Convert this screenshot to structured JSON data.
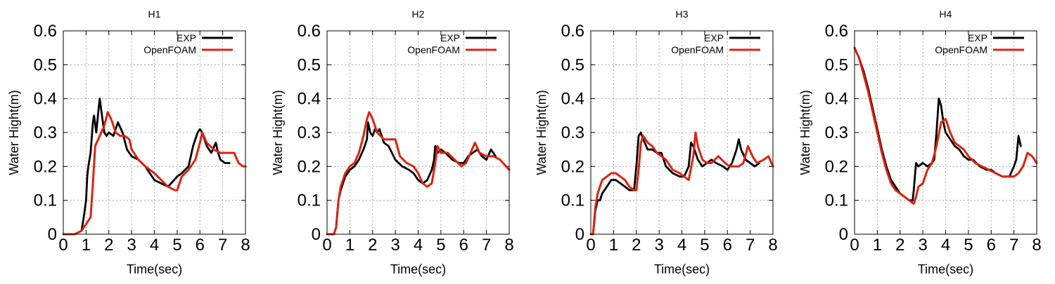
{
  "chart_data": [
    {
      "type": "line",
      "title": "H1",
      "xlabel": "Time(sec)",
      "ylabel": "Water Hight(m)",
      "xlim": [
        0,
        8
      ],
      "ylim": [
        0,
        0.6
      ],
      "xticks": [
        0,
        1,
        2,
        3,
        4,
        5,
        6,
        7,
        8
      ],
      "yticks": [
        0,
        0.1,
        0.2,
        0.3,
        0.4,
        0.5,
        0.6
      ],
      "grid": true,
      "legend": "top-right",
      "series": [
        {
          "name": "EXP",
          "color": "#000000",
          "x": [
            0,
            0.5,
            0.8,
            0.9,
            1.0,
            1.05,
            1.1,
            1.2,
            1.3,
            1.35,
            1.45,
            1.55,
            1.6,
            1.7,
            1.8,
            1.9,
            2.0,
            2.2,
            2.4,
            2.6,
            2.8,
            3.0,
            3.3,
            3.6,
            3.8,
            4.0,
            4.3,
            4.6,
            5.0,
            5.2,
            5.5,
            5.7,
            5.9,
            6.0,
            6.1,
            6.3,
            6.5,
            6.7,
            6.8,
            6.9,
            7.1,
            7.3
          ],
          "values": [
            0,
            0,
            0.01,
            0.05,
            0.1,
            0.17,
            0.2,
            0.24,
            0.33,
            0.35,
            0.3,
            0.37,
            0.4,
            0.35,
            0.3,
            0.29,
            0.3,
            0.29,
            0.33,
            0.3,
            0.25,
            0.23,
            0.22,
            0.2,
            0.18,
            0.16,
            0.15,
            0.14,
            0.17,
            0.18,
            0.2,
            0.26,
            0.3,
            0.31,
            0.3,
            0.26,
            0.24,
            0.27,
            0.24,
            0.22,
            0.21,
            0.21
          ]
        },
        {
          "name": "OpenFOAM",
          "color": "#dc2310",
          "x": [
            0,
            0.5,
            0.8,
            1.0,
            1.1,
            1.2,
            1.3,
            1.4,
            1.6,
            1.8,
            1.95,
            2.1,
            2.3,
            2.5,
            2.7,
            2.9,
            3.0,
            3.3,
            3.6,
            4.0,
            4.3,
            4.6,
            4.9,
            5.0,
            5.2,
            5.5,
            5.8,
            6.0,
            6.1,
            6.3,
            6.6,
            6.9,
            7.2,
            7.5,
            7.7,
            7.9,
            8.0
          ],
          "values": [
            0,
            0,
            0.01,
            0.03,
            0.04,
            0.05,
            0.15,
            0.26,
            0.29,
            0.32,
            0.36,
            0.34,
            0.3,
            0.29,
            0.29,
            0.28,
            0.25,
            0.22,
            0.2,
            0.18,
            0.16,
            0.14,
            0.13,
            0.13,
            0.17,
            0.19,
            0.22,
            0.27,
            0.3,
            0.27,
            0.25,
            0.24,
            0.24,
            0.24,
            0.21,
            0.2,
            0.2
          ]
        }
      ]
    },
    {
      "type": "line",
      "title": "H2",
      "xlabel": "Time(sec)",
      "ylabel": "Water Hight(m)",
      "xlim": [
        0,
        8
      ],
      "ylim": [
        0,
        0.6
      ],
      "xticks": [
        0,
        1,
        2,
        3,
        4,
        5,
        6,
        7,
        8
      ],
      "yticks": [
        0,
        0.1,
        0.2,
        0.3,
        0.4,
        0.5,
        0.6
      ],
      "grid": true,
      "legend": "top-right",
      "series": [
        {
          "name": "EXP",
          "color": "#000000",
          "x": [
            0,
            0.3,
            0.4,
            0.5,
            0.6,
            0.8,
            1.0,
            1.2,
            1.4,
            1.6,
            1.75,
            1.8,
            1.9,
            2.0,
            2.1,
            2.2,
            2.3,
            2.5,
            2.7,
            3.0,
            3.3,
            3.6,
            3.8,
            4.0,
            4.2,
            4.4,
            4.6,
            4.7,
            4.75,
            4.85,
            5.0,
            5.2,
            5.5,
            5.8,
            6.0,
            6.2,
            6.4,
            6.6,
            6.8,
            7.0,
            7.2,
            7.4
          ],
          "values": [
            0,
            0,
            0.02,
            0.1,
            0.13,
            0.17,
            0.19,
            0.2,
            0.22,
            0.25,
            0.28,
            0.33,
            0.3,
            0.29,
            0.31,
            0.3,
            0.31,
            0.27,
            0.26,
            0.22,
            0.2,
            0.19,
            0.18,
            0.16,
            0.15,
            0.16,
            0.19,
            0.22,
            0.26,
            0.24,
            0.25,
            0.24,
            0.22,
            0.21,
            0.21,
            0.23,
            0.24,
            0.25,
            0.23,
            0.22,
            0.25,
            0.23
          ]
        },
        {
          "name": "OpenFOAM",
          "color": "#dc2310",
          "x": [
            0,
            0.3,
            0.4,
            0.5,
            0.6,
            0.8,
            1.0,
            1.2,
            1.4,
            1.6,
            1.75,
            1.85,
            2.0,
            2.2,
            2.5,
            2.8,
            3.0,
            3.2,
            3.5,
            3.8,
            4.0,
            4.2,
            4.4,
            4.6,
            4.75,
            4.85,
            5.0,
            5.3,
            5.6,
            5.9,
            6.1,
            6.3,
            6.5,
            6.7,
            7.0,
            7.3,
            7.6,
            8.0
          ],
          "values": [
            0,
            0,
            0.02,
            0.1,
            0.14,
            0.18,
            0.2,
            0.21,
            0.24,
            0.29,
            0.34,
            0.36,
            0.34,
            0.3,
            0.28,
            0.28,
            0.28,
            0.23,
            0.21,
            0.2,
            0.18,
            0.15,
            0.14,
            0.15,
            0.21,
            0.26,
            0.24,
            0.24,
            0.22,
            0.2,
            0.21,
            0.24,
            0.27,
            0.24,
            0.23,
            0.23,
            0.22,
            0.19
          ]
        }
      ]
    },
    {
      "type": "line",
      "title": "H3",
      "xlabel": "Time(sec)",
      "ylabel": "Water Hight(m)",
      "xlim": [
        0,
        8
      ],
      "ylim": [
        0,
        0.6
      ],
      "xticks": [
        0,
        1,
        2,
        3,
        4,
        5,
        6,
        7,
        8
      ],
      "yticks": [
        0,
        0.1,
        0.2,
        0.3,
        0.4,
        0.5,
        0.6
      ],
      "grid": true,
      "legend": "top-right",
      "series": [
        {
          "name": "EXP",
          "color": "#000000",
          "x": [
            0,
            0.1,
            0.2,
            0.3,
            0.4,
            0.5,
            0.7,
            0.9,
            1.1,
            1.3,
            1.5,
            1.7,
            1.9,
            2.0,
            2.1,
            2.2,
            2.3,
            2.5,
            2.7,
            2.9,
            3.1,
            3.3,
            3.6,
            3.9,
            4.1,
            4.3,
            4.4,
            4.5,
            4.7,
            4.9,
            5.1,
            5.3,
            5.5,
            5.8,
            6.0,
            6.2,
            6.4,
            6.5,
            6.6,
            6.8,
            7.0,
            7.2,
            7.4
          ],
          "values": [
            0,
            0,
            0.07,
            0.1,
            0.1,
            0.12,
            0.14,
            0.16,
            0.16,
            0.15,
            0.14,
            0.13,
            0.13,
            0.2,
            0.29,
            0.3,
            0.28,
            0.25,
            0.25,
            0.24,
            0.24,
            0.2,
            0.18,
            0.17,
            0.17,
            0.2,
            0.27,
            0.26,
            0.22,
            0.2,
            0.21,
            0.22,
            0.21,
            0.2,
            0.19,
            0.21,
            0.25,
            0.28,
            0.25,
            0.22,
            0.21,
            0.2,
            0.21
          ]
        },
        {
          "name": "OpenFOAM",
          "color": "#dc2310",
          "x": [
            0,
            0.1,
            0.2,
            0.3,
            0.5,
            0.7,
            0.9,
            1.1,
            1.3,
            1.5,
            1.7,
            1.9,
            2.0,
            2.1,
            2.2,
            2.3,
            2.5,
            2.7,
            2.9,
            3.1,
            3.3,
            3.6,
            3.9,
            4.1,
            4.3,
            4.5,
            4.6,
            4.7,
            4.9,
            5.1,
            5.3,
            5.6,
            5.9,
            6.1,
            6.3,
            6.5,
            6.7,
            6.9,
            7.1,
            7.3,
            7.6,
            7.8,
            8.0
          ],
          "values": [
            0,
            0,
            0.08,
            0.12,
            0.16,
            0.17,
            0.18,
            0.18,
            0.17,
            0.16,
            0.14,
            0.13,
            0.13,
            0.19,
            0.27,
            0.29,
            0.27,
            0.26,
            0.24,
            0.23,
            0.22,
            0.19,
            0.18,
            0.17,
            0.16,
            0.23,
            0.3,
            0.26,
            0.22,
            0.21,
            0.21,
            0.23,
            0.21,
            0.2,
            0.2,
            0.2,
            0.21,
            0.26,
            0.23,
            0.21,
            0.22,
            0.23,
            0.2
          ]
        }
      ]
    },
    {
      "type": "line",
      "title": "H4",
      "xlabel": "Time(sec)",
      "ylabel": "Water Hight(m)",
      "xlim": [
        0,
        8
      ],
      "ylim": [
        0,
        0.6
      ],
      "xticks": [
        0,
        1,
        2,
        3,
        4,
        5,
        6,
        7,
        8
      ],
      "yticks": [
        0,
        0.1,
        0.2,
        0.3,
        0.4,
        0.5,
        0.6
      ],
      "grid": true,
      "legend": "top-right",
      "series": [
        {
          "name": "EXP",
          "color": "#000000",
          "x": [
            0,
            0.2,
            0.4,
            0.6,
            0.8,
            1.0,
            1.2,
            1.4,
            1.6,
            1.8,
            2.0,
            2.2,
            2.4,
            2.55,
            2.6,
            2.7,
            2.8,
            3.0,
            3.2,
            3.4,
            3.5,
            3.6,
            3.7,
            3.8,
            3.9,
            4.0,
            4.2,
            4.4,
            4.6,
            4.8,
            5.0,
            5.2,
            5.5,
            5.8,
            6.0,
            6.2,
            6.5,
            6.8,
            7.0,
            7.1,
            7.2,
            7.3
          ],
          "values": [
            0.55,
            0.52,
            0.48,
            0.43,
            0.37,
            0.31,
            0.25,
            0.2,
            0.16,
            0.14,
            0.12,
            0.11,
            0.1,
            0.1,
            0.13,
            0.21,
            0.2,
            0.21,
            0.2,
            0.21,
            0.22,
            0.3,
            0.4,
            0.38,
            0.33,
            0.3,
            0.28,
            0.26,
            0.25,
            0.23,
            0.22,
            0.22,
            0.2,
            0.19,
            0.19,
            0.18,
            0.17,
            0.17,
            0.2,
            0.22,
            0.29,
            0.26
          ]
        },
        {
          "name": "OpenFOAM",
          "color": "#dc2310",
          "x": [
            0,
            0.2,
            0.4,
            0.6,
            0.8,
            1.0,
            1.2,
            1.4,
            1.6,
            1.8,
            2.0,
            2.2,
            2.4,
            2.6,
            2.7,
            2.8,
            3.0,
            3.2,
            3.4,
            3.6,
            3.8,
            4.0,
            4.2,
            4.4,
            4.6,
            4.8,
            5.0,
            5.3,
            5.6,
            5.9,
            6.2,
            6.5,
            6.8,
            7.0,
            7.2,
            7.4,
            7.6,
            7.8,
            8.0
          ],
          "values": [
            0.55,
            0.52,
            0.47,
            0.42,
            0.36,
            0.3,
            0.24,
            0.19,
            0.15,
            0.13,
            0.12,
            0.11,
            0.1,
            0.09,
            0.11,
            0.14,
            0.15,
            0.19,
            0.21,
            0.26,
            0.33,
            0.34,
            0.3,
            0.27,
            0.26,
            0.25,
            0.23,
            0.21,
            0.2,
            0.19,
            0.18,
            0.17,
            0.17,
            0.17,
            0.18,
            0.2,
            0.24,
            0.23,
            0.21
          ]
        }
      ]
    }
  ]
}
